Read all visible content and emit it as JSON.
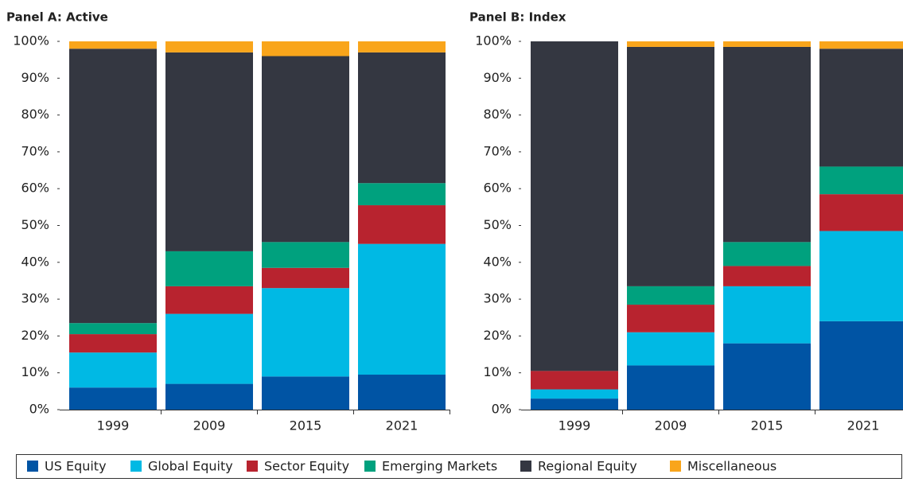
{
  "chart_data": [
    {
      "type": "bar",
      "stacked": true,
      "title": "Panel A: Active",
      "categories": [
        "1999",
        "2009",
        "2015",
        "2021"
      ],
      "series": [
        {
          "name": "US Equity",
          "color": "#0054a4",
          "values": [
            6,
            7,
            9,
            9.5
          ]
        },
        {
          "name": "Global Equity",
          "color": "#00b9e4",
          "values": [
            9.5,
            19,
            24,
            35.5
          ]
        },
        {
          "name": "Sector Equity",
          "color": "#b8232f",
          "values": [
            5,
            7.5,
            5.5,
            10.5
          ]
        },
        {
          "name": "Emerging Markets",
          "color": "#00a17e",
          "values": [
            3,
            9.5,
            7,
            6
          ]
        },
        {
          "name": "Regional Equity",
          "color": "#343741",
          "values": [
            74.5,
            54,
            50.5,
            35.5
          ]
        },
        {
          "name": "Miscellaneous",
          "color": "#f9a51b",
          "values": [
            2,
            3,
            4,
            3
          ]
        }
      ],
      "ylim": [
        0,
        100
      ],
      "yticks": [
        {
          "value": 0,
          "label": "0%"
        },
        {
          "value": 10,
          "label": "10%"
        },
        {
          "value": 20,
          "label": "20%"
        },
        {
          "value": 30,
          "label": "30%"
        },
        {
          "value": 40,
          "label": "40%"
        },
        {
          "value": 50,
          "label": "50%"
        },
        {
          "value": 60,
          "label": "60%"
        },
        {
          "value": 70,
          "label": "70%"
        },
        {
          "value": 80,
          "label": "80%"
        },
        {
          "value": 90,
          "label": "90%"
        },
        {
          "value": 100,
          "label": "100%"
        }
      ]
    },
    {
      "type": "bar",
      "stacked": true,
      "title": "Panel B: Index",
      "categories": [
        "1999",
        "2009",
        "2015",
        "2021"
      ],
      "series": [
        {
          "name": "US Equity",
          "color": "#0054a4",
          "values": [
            3,
            12,
            18,
            24
          ]
        },
        {
          "name": "Global Equity",
          "color": "#00b9e4",
          "values": [
            2.5,
            9,
            15.5,
            24.5
          ]
        },
        {
          "name": "Sector Equity",
          "color": "#b8232f",
          "values": [
            5,
            7.5,
            5.5,
            10
          ]
        },
        {
          "name": "Emerging Markets",
          "color": "#00a17e",
          "values": [
            0,
            5,
            6.5,
            7.5
          ]
        },
        {
          "name": "Regional Equity",
          "color": "#343741",
          "values": [
            89.5,
            65,
            53,
            32
          ]
        },
        {
          "name": "Miscellaneous",
          "color": "#f9a51b",
          "values": [
            0,
            1.5,
            1.5,
            2
          ]
        }
      ],
      "ylim": [
        0,
        100
      ],
      "yticks": [
        {
          "value": 0,
          "label": "0%"
        },
        {
          "value": 10,
          "label": "10%"
        },
        {
          "value": 20,
          "label": "20%"
        },
        {
          "value": 30,
          "label": "30%"
        },
        {
          "value": 40,
          "label": "40%"
        },
        {
          "value": 50,
          "label": "50%"
        },
        {
          "value": 60,
          "label": "60%"
        },
        {
          "value": 70,
          "label": "70%"
        },
        {
          "value": 80,
          "label": "80%"
        },
        {
          "value": 90,
          "label": "90%"
        },
        {
          "value": 100,
          "label": "100%"
        }
      ]
    }
  ]
}
